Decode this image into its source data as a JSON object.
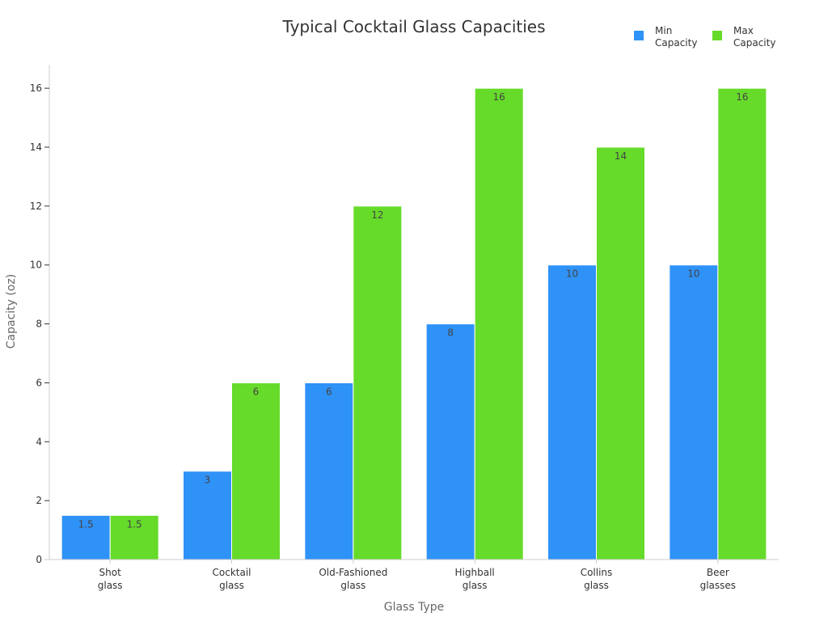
{
  "chart_data": {
    "type": "bar",
    "title": "Typical Cocktail Glass Capacities",
    "xlabel": "Glass Type",
    "ylabel": "Capacity (oz)",
    "categories": [
      [
        "Shot",
        "glass"
      ],
      [
        "Cocktail",
        "glass"
      ],
      [
        "Old-Fashioned",
        "glass"
      ],
      [
        "Highball",
        "glass"
      ],
      [
        "Collins",
        "glass"
      ],
      [
        "Beer",
        "glasses"
      ]
    ],
    "series": [
      {
        "name": [
          "Min",
          "Capacity"
        ],
        "color": "#2f92f7",
        "values": [
          1.5,
          3,
          6,
          8,
          10,
          10
        ]
      },
      {
        "name": [
          "Max",
          "Capacity"
        ],
        "color": "#66db2a",
        "values": [
          1.5,
          6,
          12,
          16,
          14,
          16
        ]
      }
    ],
    "ylim": [
      0,
      16.8
    ],
    "yticks": [
      0,
      2,
      4,
      6,
      8,
      10,
      12,
      14,
      16
    ],
    "legend": "top-right",
    "grid": false
  }
}
